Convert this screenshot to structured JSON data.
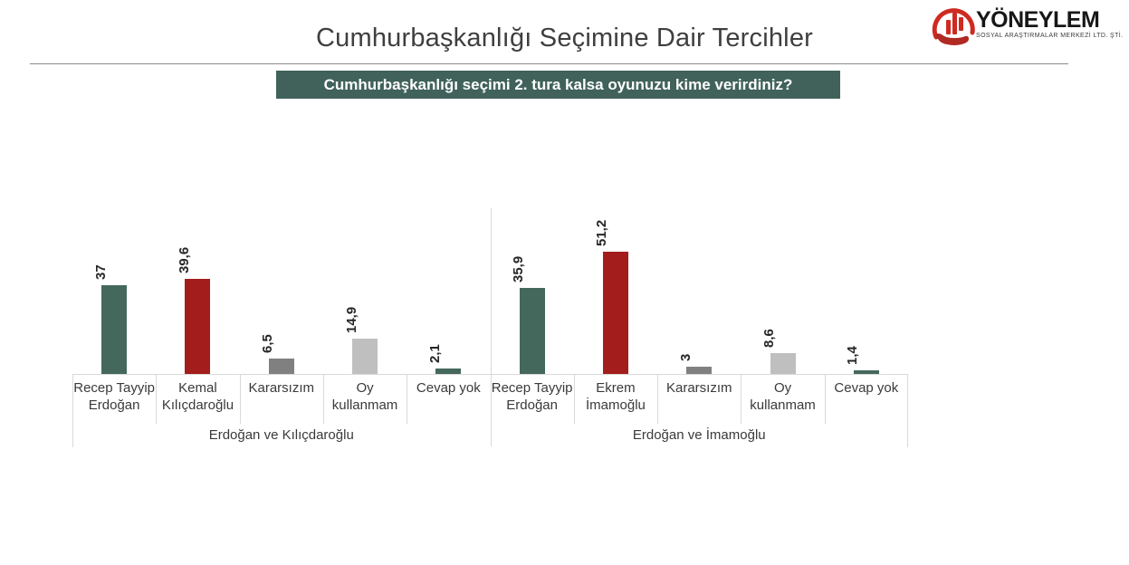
{
  "header": {
    "title": "Cumhurbaşkanlığı Seçimine Dair Tercihler"
  },
  "banner": {
    "question": "Cumhurbaşkanlığı seçimi 2. tura kalsa oyunuzu kime verirdiniz?",
    "bg": "#40625a"
  },
  "logo": {
    "name": "YÖNEYLEM",
    "subtitle": "SOSYAL ARAŞTIRMALAR MERKEZİ LTD. ŞTİ.",
    "accent": "#cf2a21",
    "accent_dark": "#b02a23"
  },
  "chart_data": {
    "type": "bar",
    "title": "Cumhurbaşkanlığı seçimi 2. tura kalsa oyunuzu kime verirdiniz?",
    "ylim": [
      0,
      69
    ],
    "grid": false,
    "value_labels_rotated": true,
    "decimal_separator": ",",
    "palette": {
      "teal": "#45685c",
      "red": "#a31d1d",
      "gray": "#808080",
      "light_gray": "#bfbfbf"
    },
    "groups": [
      {
        "label": "Erdoğan ve Kılıçdaroğlu",
        "bars": [
          {
            "category": "Recep Tayyip Erdoğan",
            "value": 37,
            "display": "37",
            "color": "teal"
          },
          {
            "category": "Kemal Kılıçdaroğlu",
            "value": 39.6,
            "display": "39,6",
            "color": "red"
          },
          {
            "category": "Kararsızım",
            "value": 6.5,
            "display": "6,5",
            "color": "gray"
          },
          {
            "category": "Oy kullanmam",
            "value": 14.9,
            "display": "14,9",
            "color": "light_gray"
          },
          {
            "category": "Cevap yok",
            "value": 2.1,
            "display": "2,1",
            "color": "teal"
          }
        ]
      },
      {
        "label": "Erdoğan ve İmamoğlu",
        "bars": [
          {
            "category": "Recep Tayyip Erdoğan",
            "value": 35.9,
            "display": "35,9",
            "color": "teal"
          },
          {
            "category": "Ekrem İmamoğlu",
            "value": 51.2,
            "display": "51,2",
            "color": "red"
          },
          {
            "category": "Kararsızım",
            "value": 3,
            "display": "3",
            "color": "gray"
          },
          {
            "category": "Oy kullanmam",
            "value": 8.6,
            "display": "8,6",
            "color": "light_gray"
          },
          {
            "category": "Cevap yok",
            "value": 1.4,
            "display": "1,4",
            "color": "teal"
          }
        ]
      }
    ]
  }
}
